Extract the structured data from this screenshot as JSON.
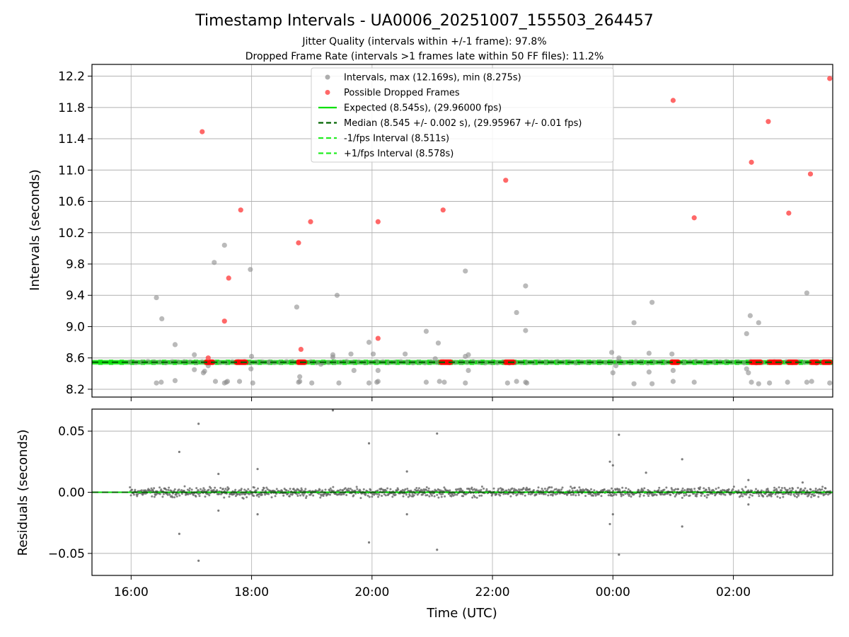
{
  "figure": {
    "title": "Timestamp Intervals - UA0006_20251007_155503_264457",
    "subtitle_1": "Jitter Quality (intervals within +/-1 frame): 97.8%",
    "subtitle_2": "Dropped Frame Rate (intervals >1 frames late within 50 FF files): 11.2%"
  },
  "colors": {
    "intervals": "#8c8c8c",
    "dropped": "#ff4d4d",
    "dropped_band": "#ff0000",
    "expected": "#00e000",
    "median": "#006400",
    "fps_bounds": "#22ee22",
    "residuals": "#666666",
    "grid": "#b0b0b0"
  },
  "chart_data": [
    {
      "type": "scatter",
      "ylabel": "Intervals (seconds)",
      "xlim_hours": [
        15.35,
        27.65
      ],
      "ylim": [
        8.1,
        12.35
      ],
      "yticks": [
        "8.2",
        "8.6",
        "9.0",
        "9.4",
        "9.8",
        "10.2",
        "10.6",
        "11.0",
        "11.4",
        "11.8",
        "12.2"
      ],
      "grid": true,
      "legend_position": "top-center",
      "legend": [
        {
          "label": "Intervals, max (12.169s), min (8.275s)",
          "kind": "gray-dot"
        },
        {
          "label": "Possible Dropped Frames",
          "kind": "red-dot"
        },
        {
          "label": "Expected (8.545s), (29.96000 fps)",
          "kind": "solid-line"
        },
        {
          "label": "Median (8.545 +/- 0.002 s), (29.95967 +/- 0.01 fps)",
          "kind": "dark-dashed"
        },
        {
          "label": "-1/fps Interval (8.511s)",
          "kind": "green-dashed"
        },
        {
          "label": "+1/fps Interval (8.578s)",
          "kind": "green-dashed"
        }
      ],
      "hlines": {
        "expected": 8.545,
        "median": 8.545,
        "minus_fps": 8.511,
        "plus_fps": 8.578
      },
      "intervals_outliers": [
        [
          16.42,
          9.37
        ],
        [
          16.51,
          9.1
        ],
        [
          16.42,
          8.28
        ],
        [
          16.5,
          8.29
        ],
        [
          16.73,
          8.31
        ],
        [
          16.73,
          8.77
        ],
        [
          17.05,
          8.64
        ],
        [
          17.05,
          8.45
        ],
        [
          17.2,
          8.41
        ],
        [
          17.22,
          8.43
        ],
        [
          17.28,
          8.5
        ],
        [
          17.38,
          9.82
        ],
        [
          17.4,
          8.3
        ],
        [
          17.55,
          10.04
        ],
        [
          17.55,
          8.28
        ],
        [
          17.58,
          8.29
        ],
        [
          17.6,
          8.3
        ],
        [
          17.8,
          8.3
        ],
        [
          17.98,
          9.73
        ],
        [
          17.99,
          8.46
        ],
        [
          18.0,
          8.62
        ],
        [
          18.02,
          8.28
        ],
        [
          18.3,
          8.55
        ],
        [
          18.75,
          9.25
        ],
        [
          18.78,
          8.29
        ],
        [
          18.8,
          8.36
        ],
        [
          18.8,
          8.3
        ],
        [
          19.0,
          8.28
        ],
        [
          19.15,
          8.52
        ],
        [
          19.35,
          8.64
        ],
        [
          19.35,
          8.61
        ],
        [
          19.42,
          9.4
        ],
        [
          19.45,
          8.28
        ],
        [
          19.65,
          8.65
        ],
        [
          19.7,
          8.44
        ],
        [
          19.95,
          8.8
        ],
        [
          19.95,
          8.28
        ],
        [
          20.02,
          8.65
        ],
        [
          20.08,
          8.29
        ],
        [
          20.1,
          8.3
        ],
        [
          20.1,
          8.44
        ],
        [
          20.55,
          8.65
        ],
        [
          20.9,
          8.94
        ],
        [
          20.9,
          8.29
        ],
        [
          21.05,
          8.59
        ],
        [
          21.1,
          8.79
        ],
        [
          21.12,
          8.3
        ],
        [
          21.2,
          8.29
        ],
        [
          21.55,
          9.71
        ],
        [
          21.55,
          8.62
        ],
        [
          21.6,
          8.64
        ],
        [
          21.6,
          8.44
        ],
        [
          21.55,
          8.28
        ],
        [
          22.25,
          8.28
        ],
        [
          22.4,
          9.18
        ],
        [
          22.4,
          8.3
        ],
        [
          22.55,
          9.52
        ],
        [
          22.55,
          8.95
        ],
        [
          22.55,
          8.29
        ],
        [
          22.57,
          8.28
        ],
        [
          23.98,
          8.67
        ],
        [
          24.0,
          8.41
        ],
        [
          24.05,
          8.5
        ],
        [
          24.1,
          8.6
        ],
        [
          24.35,
          9.05
        ],
        [
          24.35,
          8.27
        ],
        [
          24.6,
          8.66
        ],
        [
          24.6,
          8.42
        ],
        [
          24.65,
          9.31
        ],
        [
          24.65,
          8.27
        ],
        [
          24.98,
          8.65
        ],
        [
          25.0,
          8.44
        ],
        [
          25.0,
          8.3
        ],
        [
          25.35,
          8.29
        ],
        [
          26.22,
          8.91
        ],
        [
          26.22,
          8.46
        ],
        [
          26.25,
          8.41
        ],
        [
          26.28,
          9.14
        ],
        [
          26.3,
          8.29
        ],
        [
          26.42,
          9.05
        ],
        [
          26.42,
          8.27
        ],
        [
          26.6,
          8.28
        ],
        [
          26.9,
          8.29
        ],
        [
          27.22,
          9.43
        ],
        [
          27.22,
          8.29
        ],
        [
          27.3,
          8.3
        ],
        [
          27.6,
          8.28
        ]
      ],
      "dropped_frames": [
        [
          17.18,
          11.49
        ],
        [
          17.28,
          8.6
        ],
        [
          17.55,
          9.07
        ],
        [
          17.62,
          9.62
        ],
        [
          17.82,
          10.49
        ],
        [
          18.78,
          10.07
        ],
        [
          18.82,
          8.71
        ],
        [
          18.98,
          10.34
        ],
        [
          20.1,
          10.34
        ],
        [
          20.1,
          8.85
        ],
        [
          21.18,
          10.49
        ],
        [
          22.22,
          10.87
        ],
        [
          25.0,
          11.89
        ],
        [
          25.35,
          10.39
        ],
        [
          26.3,
          11.1
        ],
        [
          26.58,
          11.62
        ],
        [
          26.92,
          10.45
        ],
        [
          27.28,
          10.95
        ],
        [
          27.6,
          12.17
        ]
      ],
      "dropped_band": [
        [
          17.25,
          17.35
        ],
        [
          17.75,
          17.9
        ],
        [
          18.78,
          18.88
        ],
        [
          21.15,
          21.32
        ],
        [
          22.22,
          22.35
        ],
        [
          24.98,
          25.1
        ],
        [
          26.3,
          26.45
        ],
        [
          26.6,
          26.78
        ],
        [
          26.92,
          27.05
        ],
        [
          27.3,
          27.4
        ],
        [
          27.5,
          27.62
        ]
      ]
    },
    {
      "type": "scatter",
      "xlabel": "Time (UTC)",
      "ylabel": "Residuals (seconds)",
      "xlim_hours": [
        15.35,
        27.65
      ],
      "ylim": [
        -0.068,
        0.068
      ],
      "yticks": [
        "0.05",
        "0.00",
        "−0.05"
      ],
      "xticks": [
        {
          "hour": 16,
          "label": "16:00"
        },
        {
          "hour": 18,
          "label": "18:00"
        },
        {
          "hour": 20,
          "label": "20:00"
        },
        {
          "hour": 22,
          "label": "22:00"
        },
        {
          "hour": 24,
          "label": "00:00"
        },
        {
          "hour": 26,
          "label": "02:00"
        }
      ],
      "grid": true,
      "residual_noise_sd": 0.0018,
      "residual_outliers": [
        [
          16.8,
          0.033
        ],
        [
          16.8,
          -0.034
        ],
        [
          17.12,
          0.056
        ],
        [
          17.12,
          -0.056
        ],
        [
          17.45,
          0.015
        ],
        [
          17.45,
          -0.015
        ],
        [
          18.1,
          0.019
        ],
        [
          18.1,
          -0.018
        ],
        [
          19.35,
          0.067
        ],
        [
          19.95,
          0.04
        ],
        [
          19.95,
          -0.041
        ],
        [
          20.58,
          0.017
        ],
        [
          20.58,
          -0.018
        ],
        [
          21.08,
          0.048
        ],
        [
          21.08,
          -0.047
        ],
        [
          23.95,
          0.025
        ],
        [
          23.95,
          -0.026
        ],
        [
          24.0,
          0.022
        ],
        [
          24.0,
          -0.018
        ],
        [
          24.1,
          0.047
        ],
        [
          24.1,
          -0.051
        ],
        [
          24.55,
          0.016
        ],
        [
          25.15,
          0.027
        ],
        [
          25.15,
          -0.028
        ],
        [
          26.25,
          0.01
        ],
        [
          26.25,
          -0.01
        ],
        [
          27.15,
          0.008
        ]
      ]
    }
  ]
}
